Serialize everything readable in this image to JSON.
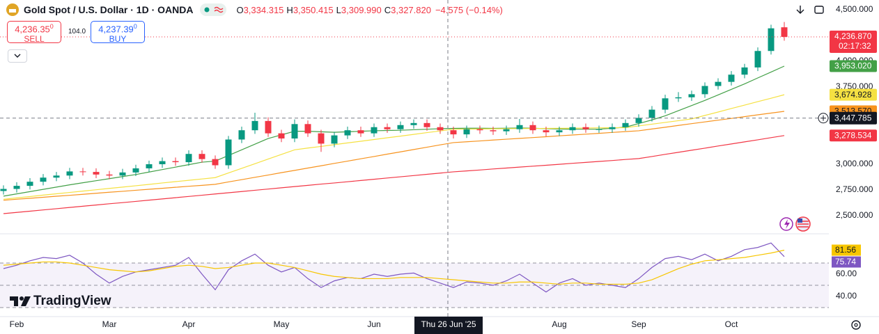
{
  "header": {
    "symbol": "Gold Spot / U.S. Dollar · 1D · OANDA",
    "ohlc": [
      {
        "label": "O",
        "value": "3,334.315"
      },
      {
        "label": "H",
        "value": "3,350.415"
      },
      {
        "label": "L",
        "value": "3,309.990"
      },
      {
        "label": "C",
        "value": "3,327.820"
      }
    ],
    "change": "−4.575 (−0.14%)"
  },
  "trade": {
    "sell_price": "4,236.35",
    "sell_price_sup": "0",
    "sell_label": "SELL",
    "spread": "104.0",
    "buy_price": "4,237.39",
    "buy_price_sup": "0",
    "buy_label": "BUY"
  },
  "crosshair": {
    "date": "Thu 26 Jun '25",
    "price": 3447.785,
    "price_label": "3,447.785"
  },
  "branding": "TradingView",
  "chart_data": [
    {
      "type": "candlestick",
      "categories": [
        null,
        "Feb",
        null,
        null,
        null,
        null,
        null,
        null,
        "Mar",
        null,
        null,
        null,
        null,
        null,
        "Apr",
        null,
        null,
        null,
        null,
        null,
        null,
        "May",
        null,
        null,
        null,
        null,
        null,
        null,
        "Jun",
        null,
        null,
        null,
        null,
        null,
        null,
        null,
        null,
        null,
        null,
        null,
        null,
        null,
        "Aug",
        null,
        null,
        null,
        null,
        null,
        "Sep",
        null,
        null,
        null,
        null,
        null,
        null,
        "Oct",
        null,
        null,
        null,
        null
      ],
      "open": [
        2740,
        2760,
        2790,
        2830,
        2870,
        2890,
        2930,
        2925,
        2900,
        2890,
        2920,
        2960,
        3000,
        3030,
        3020,
        3100,
        3050,
        2990,
        3240,
        3330,
        3420,
        3300,
        3250,
        3390,
        3300,
        3200,
        3280,
        3330,
        3300,
        3360,
        3340,
        3380,
        3400,
        3360,
        3330,
        3290,
        3340,
        3330,
        3320,
        3340,
        3380,
        3330,
        3310,
        3330,
        3360,
        3340,
        3340,
        3360,
        3400,
        3450,
        3530,
        3640,
        3650,
        3680,
        3760,
        3800,
        3870,
        3940,
        4100,
        4330
      ],
      "high": [
        2795,
        2825,
        2865,
        2905,
        2925,
        2965,
        2965,
        2960,
        2935,
        2955,
        2995,
        3035,
        3065,
        3065,
        3135,
        3135,
        3085,
        3275,
        3365,
        3500,
        3455,
        3335,
        3435,
        3425,
        3335,
        3315,
        3365,
        3365,
        3395,
        3395,
        3415,
        3435,
        3435,
        3395,
        3365,
        3375,
        3375,
        3365,
        3375,
        3440,
        3415,
        3365,
        3365,
        3395,
        3395,
        3375,
        3395,
        3435,
        3485,
        3565,
        3675,
        3700,
        3715,
        3795,
        3835,
        3905,
        3975,
        4135,
        4355,
        4381
      ],
      "low": [
        2705,
        2725,
        2755,
        2795,
        2835,
        2855,
        2890,
        2865,
        2855,
        2855,
        2885,
        2925,
        2965,
        2985,
        2985,
        3015,
        2955,
        2955,
        3205,
        3295,
        3265,
        3215,
        3215,
        3265,
        3120,
        3165,
        3245,
        3265,
        3265,
        3305,
        3305,
        3345,
        3325,
        3295,
        3250,
        3255,
        3295,
        3285,
        3285,
        3305,
        3295,
        3270,
        3275,
        3295,
        3305,
        3305,
        3305,
        3325,
        3365,
        3415,
        3495,
        3605,
        3615,
        3645,
        3725,
        3765,
        3835,
        3905,
        4065,
        4200
      ],
      "close": [
        2760,
        2790,
        2830,
        2870,
        2890,
        2930,
        2925,
        2900,
        2890,
        2920,
        2960,
        3000,
        3030,
        3020,
        3100,
        3050,
        2990,
        3240,
        3330,
        3420,
        3300,
        3250,
        3390,
        3300,
        3200,
        3280,
        3330,
        3300,
        3360,
        3340,
        3380,
        3400,
        3360,
        3330,
        3290,
        3340,
        3330,
        3320,
        3340,
        3380,
        3330,
        3310,
        3330,
        3360,
        3340,
        3340,
        3360,
        3400,
        3450,
        3530,
        3640,
        3650,
        3680,
        3760,
        3800,
        3870,
        3940,
        4100,
        4320,
        4236.87
      ],
      "up_color": "#089981",
      "down_color": "#f23645",
      "last_price_label": "4,236.870",
      "countdown": "02:17:32",
      "series": [
        {
          "color": "#43a047",
          "last_value_label": "3,953.020",
          "values": [
            2690,
            2712,
            2734,
            2756,
            2778,
            2800,
            2820,
            2840,
            2860,
            2880,
            2900,
            2924,
            2948,
            2972,
            2996,
            3020,
            3030,
            3085,
            3140,
            3195,
            3250,
            3285,
            3320,
            3320,
            3315,
            3310,
            3315,
            3320,
            3325,
            3328,
            3330,
            3335,
            3340,
            3345,
            3348,
            3350,
            3350,
            3348,
            3350,
            3352,
            3350,
            3345,
            3342,
            3340,
            3340,
            3340,
            3350,
            3360,
            3395,
            3430,
            3470,
            3520,
            3570,
            3620,
            3673,
            3727,
            3780,
            3838,
            3895,
            3953.02
          ]
        },
        {
          "color": "#f5e142",
          "last_value_label": "3,674.928",
          "values": [
            2660,
            2673,
            2686,
            2700,
            2713,
            2726,
            2739,
            2752,
            2765,
            2778,
            2791,
            2804,
            2818,
            2831,
            2844,
            2857,
            2870,
            2915,
            2960,
            3005,
            3050,
            3095,
            3140,
            3157,
            3173,
            3190,
            3207,
            3223,
            3240,
            3257,
            3273,
            3290,
            3307,
            3323,
            3340,
            3341,
            3342,
            3344,
            3345,
            3346,
            3347,
            3348,
            3349,
            3350,
            3352,
            3353,
            3354,
            3355,
            3372,
            3389,
            3406,
            3423,
            3440,
            3474,
            3507,
            3541,
            3574,
            3608,
            3641,
            3674.928
          ]
        },
        {
          "color": "#f7931e",
          "last_value_label": "3,513.570",
          "values": [
            2650,
            2660,
            2669,
            2679,
            2689,
            2698,
            2708,
            2718,
            2728,
            2737,
            2747,
            2757,
            2766,
            2776,
            2786,
            2795,
            2805,
            2828,
            2850,
            2873,
            2895,
            2918,
            2940,
            2963,
            2985,
            3008,
            3030,
            3053,
            3075,
            3098,
            3120,
            3143,
            3165,
            3188,
            3210,
            3218,
            3226,
            3235,
            3243,
            3251,
            3259,
            3267,
            3276,
            3284,
            3292,
            3300,
            3309,
            3317,
            3325,
            3342,
            3359,
            3377,
            3394,
            3411,
            3428,
            3445,
            3462,
            3480,
            3497,
            3513.57
          ]
        },
        {
          "color": "#f23645",
          "last_value_label": "3,278.534",
          "values": [
            2520,
            2532,
            2544,
            2556,
            2568,
            2580,
            2592,
            2604,
            2616,
            2627,
            2639,
            2651,
            2663,
            2675,
            2687,
            2699,
            2711,
            2723,
            2735,
            2747,
            2759,
            2771,
            2783,
            2795,
            2807,
            2818,
            2830,
            2842,
            2854,
            2866,
            2878,
            2890,
            2902,
            2914,
            2926,
            2935,
            2944,
            2954,
            2963,
            2972,
            2981,
            2990,
            2999,
            3009,
            3018,
            3027,
            3036,
            3046,
            3055,
            3075,
            3096,
            3116,
            3136,
            3156,
            3177,
            3197,
            3217,
            3237,
            3258,
            3278.534
          ]
        }
      ],
      "ylim": [
        2331,
        4595
      ],
      "yticks": [
        {
          "value": 2500,
          "label": "2,500.000"
        },
        {
          "value": 2750,
          "label": "2,750.000"
        },
        {
          "value": 3000,
          "label": "3,000.000"
        },
        {
          "value": 3750,
          "label": "3,750.000"
        },
        {
          "value": 4000,
          "label": "4,000.000"
        },
        {
          "value": 4500,
          "label": "4,500.000"
        }
      ]
    },
    {
      "type": "line",
      "series": [
        {
          "color": "#7e57c2",
          "last_value_label": "75.74",
          "values": [
            65,
            68,
            72,
            75,
            74,
            77,
            70,
            60,
            52,
            58,
            62,
            64,
            66,
            68,
            75,
            60,
            46,
            64,
            72,
            78,
            68,
            62,
            66,
            56,
            48,
            54,
            57,
            56,
            60,
            58,
            60,
            61,
            56,
            52,
            48,
            53,
            52,
            50,
            54,
            60,
            52,
            44,
            52,
            56,
            50,
            52,
            50,
            48,
            56,
            66,
            74,
            76,
            73,
            78,
            72,
            76,
            82,
            84,
            88,
            75.74
          ]
        },
        {
          "color": "#f7c600",
          "last_value_label": "81.56",
          "values": [
            68,
            69,
            70,
            71,
            71,
            70,
            68,
            66,
            64,
            63,
            62,
            63,
            65,
            67,
            68,
            67,
            65,
            66,
            68,
            70,
            70,
            68,
            66,
            63,
            60,
            58,
            57,
            56,
            56,
            56,
            57,
            57,
            57,
            56,
            55,
            54,
            53,
            52,
            52,
            53,
            53,
            52,
            51,
            52,
            52,
            51,
            51,
            51,
            52,
            55,
            60,
            65,
            69,
            72,
            73,
            74,
            75,
            77,
            79,
            81.56
          ]
        }
      ],
      "levels": [
        70,
        50,
        30
      ],
      "ylim": [
        21.9,
        93.75
      ],
      "yticks": [
        {
          "value": 60,
          "label": "60.00"
        },
        {
          "value": 40,
          "label": "40.00"
        }
      ]
    }
  ]
}
